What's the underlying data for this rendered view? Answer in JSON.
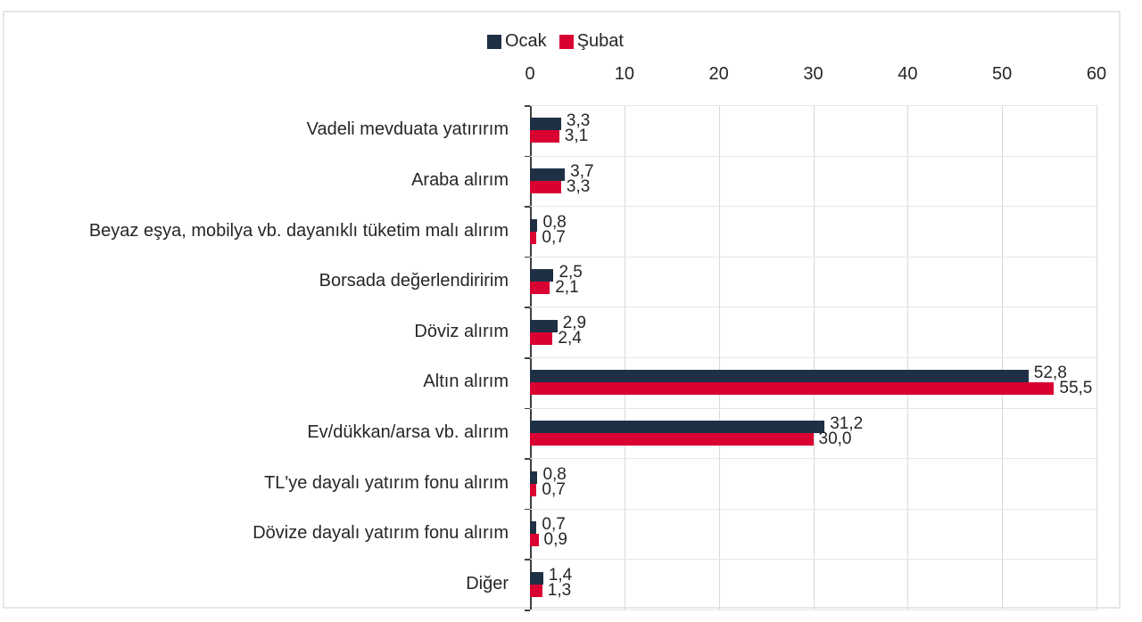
{
  "chart_data": {
    "type": "bar",
    "orientation": "horizontal",
    "title": "",
    "xlabel": "",
    "ylabel": "",
    "xlim": [
      0,
      60
    ],
    "x_ticks": [
      "0",
      "10",
      "20",
      "30",
      "40",
      "50",
      "60"
    ],
    "x_axis_position": "top",
    "grid": true,
    "legend_position": "top",
    "categories": [
      "Vadeli mevduata yatırırım",
      "Araba alırım",
      "Beyaz eşya, mobilya vb. dayanıklı tüketim malı alırım",
      "Borsada değerlendiririm",
      "Döviz alırım",
      "Altın alırım",
      "Ev/dükkan/arsa vb. alırım",
      "TL'ye dayalı yatırım fonu alırım",
      "Dövize dayalı yatırım fonu alırım",
      "Diğer"
    ],
    "series": [
      {
        "name": "Ocak",
        "color": "#1f3044",
        "values": [
          3.3,
          3.7,
          0.8,
          2.5,
          2.9,
          52.8,
          31.2,
          0.8,
          0.7,
          1.4
        ],
        "labels": [
          "3,3",
          "3,7",
          "0,8",
          "2,5",
          "2,9",
          "52,8",
          "31,2",
          "0,8",
          "0,7",
          "1,4"
        ]
      },
      {
        "name": "Şubat",
        "color": "#d90032",
        "values": [
          3.1,
          3.3,
          0.7,
          2.1,
          2.4,
          55.5,
          30.0,
          0.7,
          0.9,
          1.3
        ],
        "labels": [
          "3,1",
          "3,3",
          "0,7",
          "2,1",
          "2,4",
          "55,5",
          "30,0",
          "0,7",
          "0,9",
          "1,3"
        ]
      }
    ]
  },
  "legend": {
    "items": [
      {
        "label": "Ocak",
        "color": "#1f3044"
      },
      {
        "label": "Şubat",
        "color": "#d90032"
      }
    ]
  }
}
